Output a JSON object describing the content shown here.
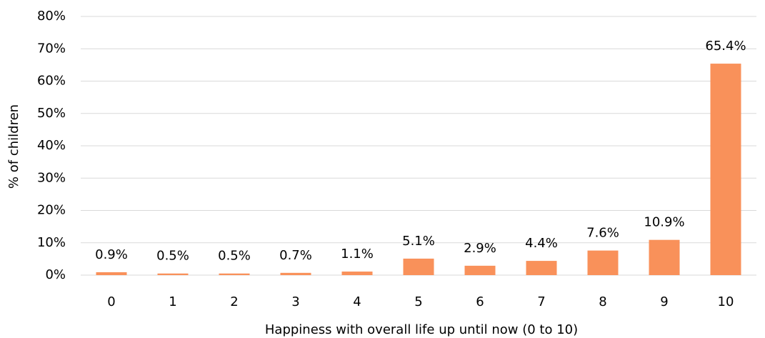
{
  "chart_data": {
    "type": "bar",
    "x_label": "Happiness with overall life up until now (0 to 10)",
    "y_label": "% of children",
    "categories": [
      "0",
      "1",
      "2",
      "3",
      "4",
      "5",
      "6",
      "7",
      "8",
      "9",
      "10"
    ],
    "values": [
      0.9,
      0.5,
      0.5,
      0.7,
      1.1,
      5.1,
      2.9,
      4.4,
      7.6,
      10.9,
      65.4
    ],
    "value_labels": [
      "0.9%",
      "0.5%",
      "0.5%",
      "0.7%",
      "1.1%",
      "5.1%",
      "2.9%",
      "4.4%",
      "7.6%",
      "10.9%",
      "65.4%"
    ],
    "color": "#f9915a",
    "ylim": [
      0,
      80
    ],
    "yticks": [
      {
        "value": 0,
        "label": "0%"
      },
      {
        "value": 10,
        "label": "10%"
      },
      {
        "value": 20,
        "label": "20%"
      },
      {
        "value": 30,
        "label": "30%"
      },
      {
        "value": 40,
        "label": "40%"
      },
      {
        "value": 50,
        "label": "50%"
      },
      {
        "value": 60,
        "label": "60%"
      },
      {
        "value": 70,
        "label": "70%"
      },
      {
        "value": 80,
        "label": "80%"
      }
    ],
    "grid": true
  }
}
